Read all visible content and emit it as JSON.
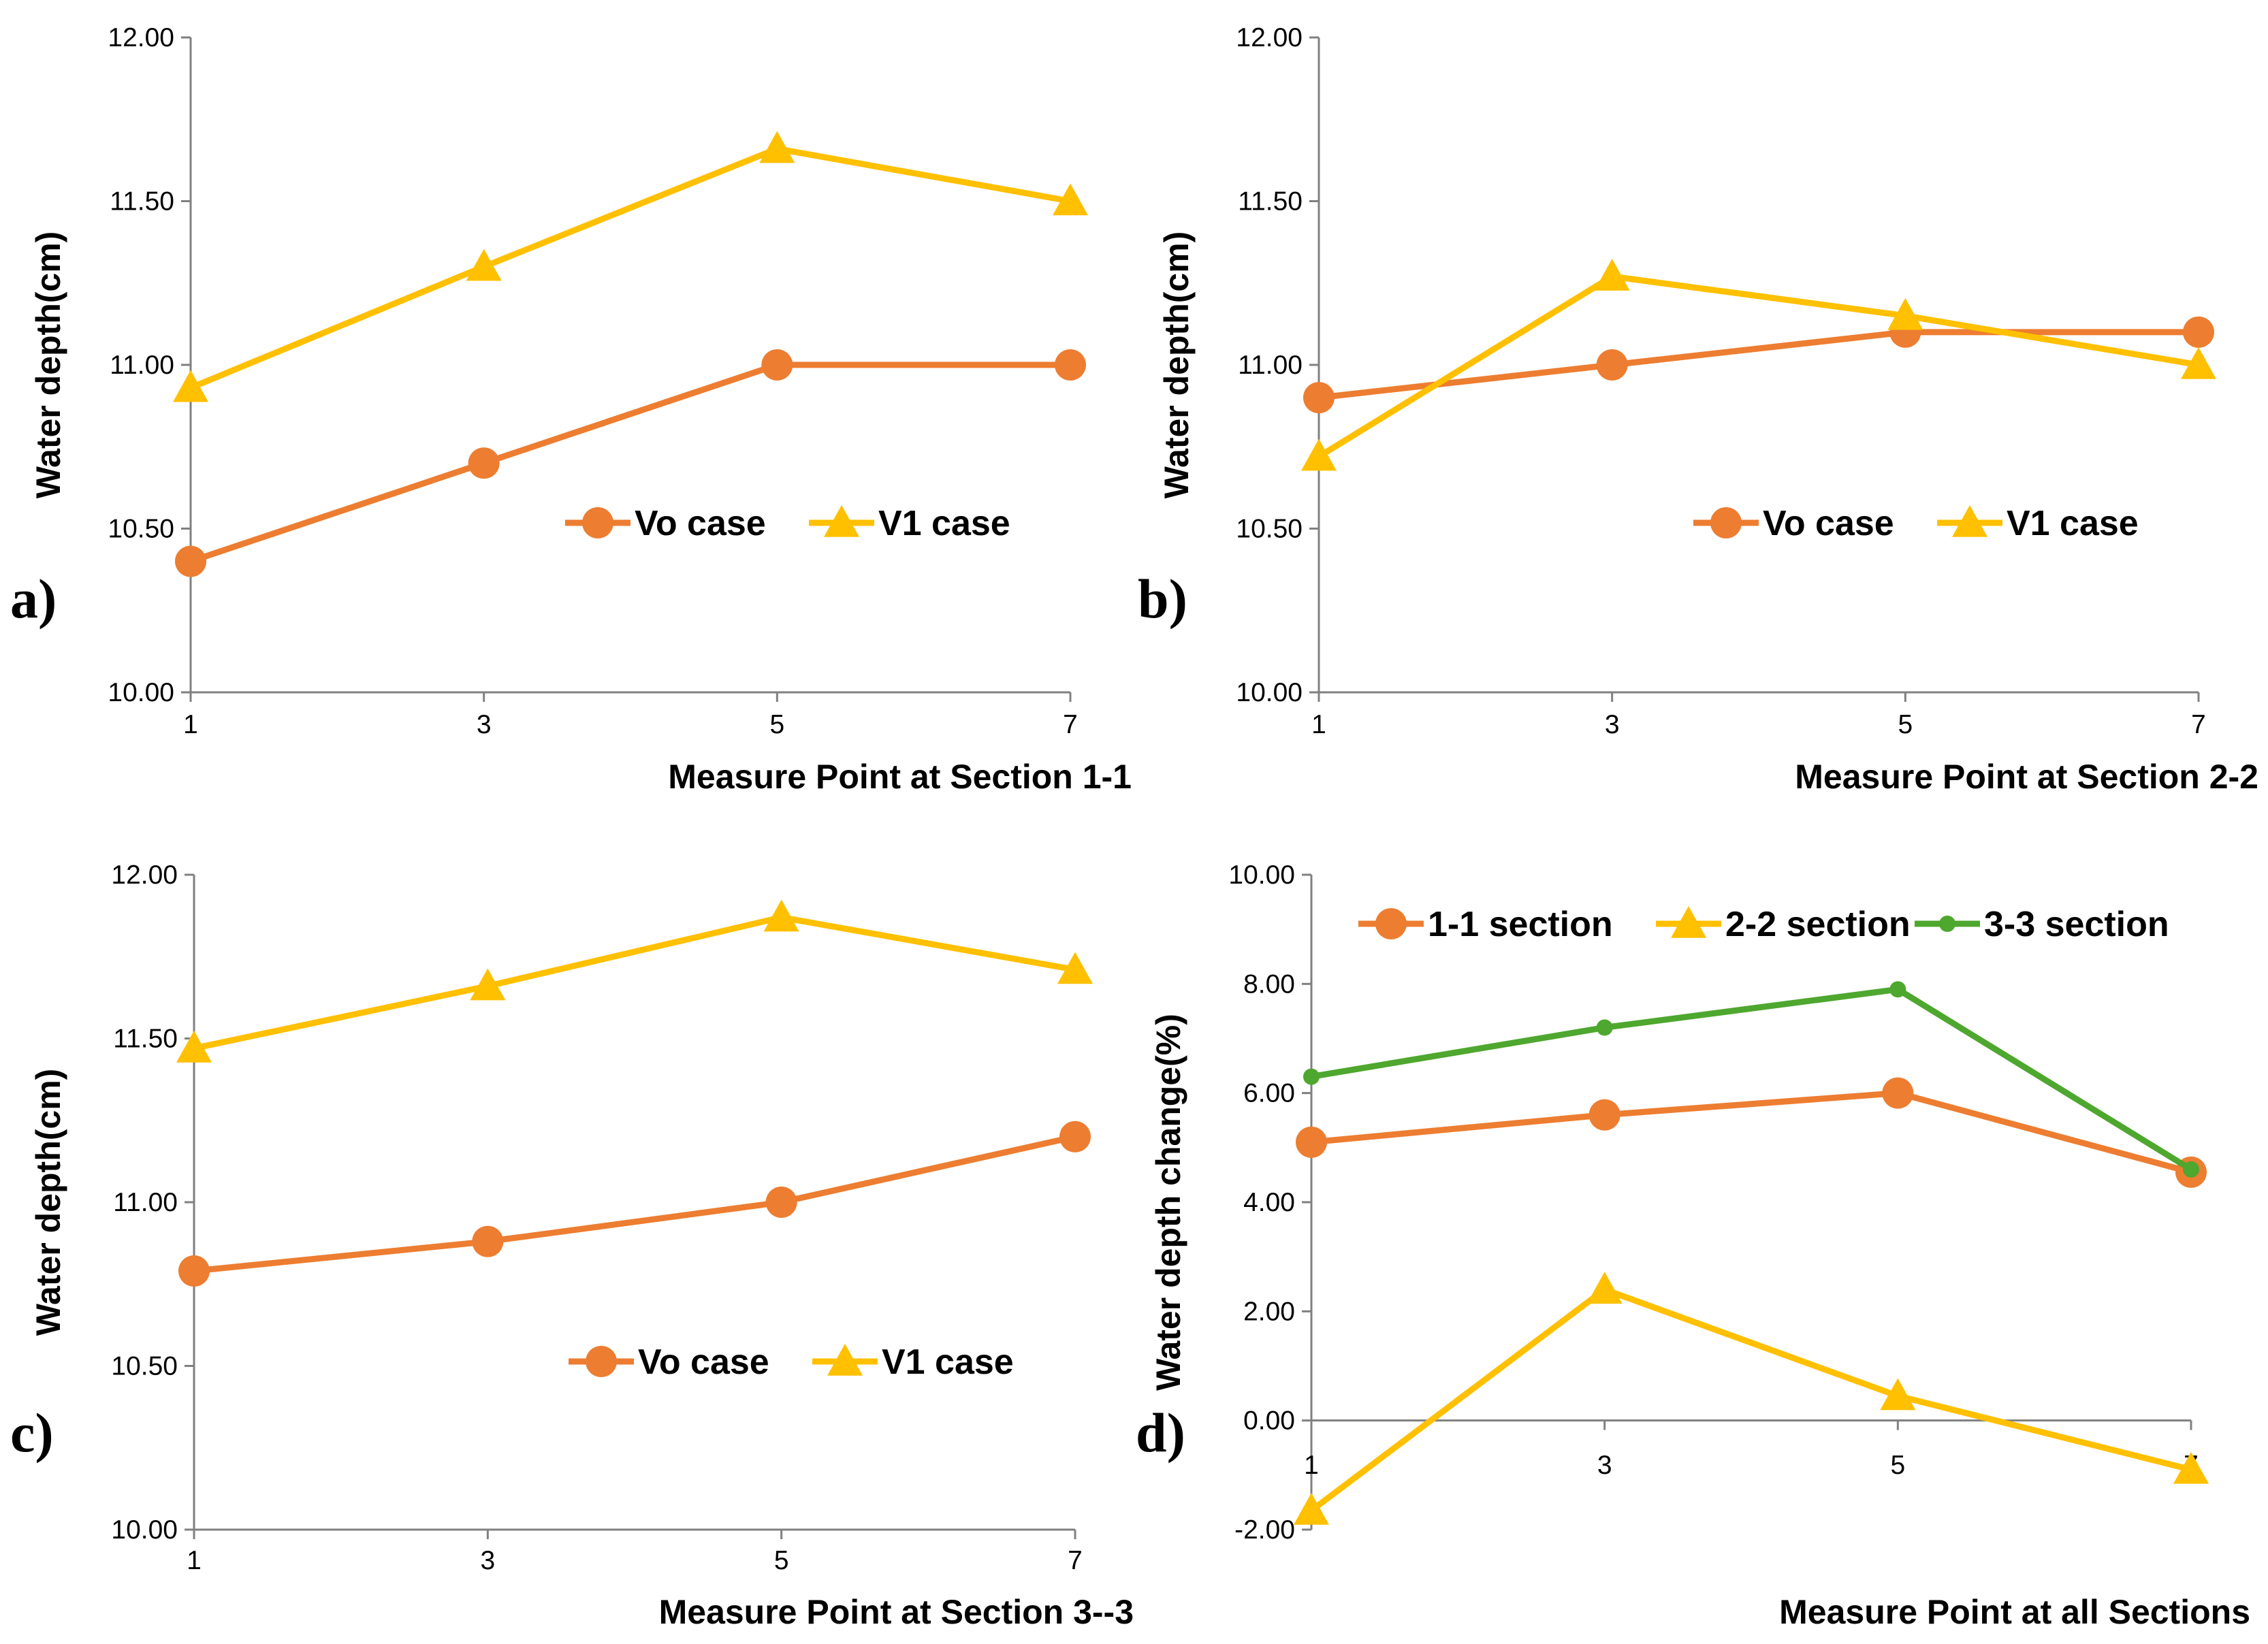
{
  "colors": {
    "orange": "#ED7D31",
    "yellow": "#FFC000",
    "green": "#4EA72E",
    "axis": "#808080"
  },
  "chart_data": [
    {
      "type": "line",
      "panel": "a)",
      "x": [
        1,
        3,
        5,
        7
      ],
      "xlabel": "Measure Point at Section 1-1",
      "ylabel": "Water depth(cm)",
      "ylim": [
        10.0,
        12.0
      ],
      "yticks": [
        "10.00",
        "10.50",
        "11.00",
        "11.50",
        "12.00"
      ],
      "xticks": [
        "1",
        "3",
        "5",
        "7"
      ],
      "legend_position": "center-right",
      "series": [
        {
          "name": "Vo case",
          "marker": "circle",
          "color": "#ED7D31",
          "values": [
            10.4,
            10.7,
            11.0,
            11.0
          ]
        },
        {
          "name": "V1 case",
          "marker": "triangle",
          "color": "#FFC000",
          "values": [
            10.93,
            11.3,
            11.66,
            11.5
          ]
        }
      ]
    },
    {
      "type": "line",
      "panel": "b)",
      "x": [
        1,
        3,
        5,
        7
      ],
      "xlabel": "Measure Point at Section 2-2",
      "ylabel": "Water depth(cm)",
      "ylim": [
        10.0,
        12.0
      ],
      "yticks": [
        "10.00",
        "10.50",
        "11.00",
        "11.50",
        "12.00"
      ],
      "xticks": [
        "1",
        "3",
        "5",
        "7"
      ],
      "legend_position": "center-right",
      "series": [
        {
          "name": "Vo case",
          "marker": "circle",
          "color": "#ED7D31",
          "values": [
            10.9,
            11.0,
            11.1,
            11.1
          ]
        },
        {
          "name": "V1 case",
          "marker": "triangle",
          "color": "#FFC000",
          "values": [
            10.72,
            11.27,
            11.15,
            11.0
          ]
        }
      ]
    },
    {
      "type": "line",
      "panel": "c)",
      "x": [
        1,
        3,
        5,
        7
      ],
      "xlabel": "Measure Point at Section 3--3",
      "ylabel": "Water depth(cm)",
      "ylim": [
        10.0,
        12.0
      ],
      "yticks": [
        "10.00",
        "10.50",
        "11.00",
        "11.50",
        "12.00"
      ],
      "xticks": [
        "1",
        "3",
        "5",
        "7"
      ],
      "legend_position": "center-right",
      "series": [
        {
          "name": "Vo case",
          "marker": "circle",
          "color": "#ED7D31",
          "values": [
            10.79,
            10.88,
            11.0,
            11.2
          ]
        },
        {
          "name": "V1 case",
          "marker": "triangle",
          "color": "#FFC000",
          "values": [
            11.47,
            11.66,
            11.87,
            11.71
          ]
        }
      ]
    },
    {
      "type": "line",
      "panel": "d)",
      "x": [
        1,
        3,
        5,
        7
      ],
      "xlabel": "Measure Point at all Sections",
      "ylabel": "Water depth change(%)",
      "ylim": [
        -2.0,
        10.0
      ],
      "yticks": [
        "-2.00",
        "0.00",
        "2.00",
        "4.00",
        "6.00",
        "8.00",
        "10.00"
      ],
      "xticks": [
        "1",
        "3",
        "5",
        "7"
      ],
      "legend_position": "top",
      "series": [
        {
          "name": "1-1 section",
          "marker": "circle",
          "color": "#ED7D31",
          "values": [
            5.1,
            5.6,
            6.0,
            4.55
          ]
        },
        {
          "name": "2-2 section",
          "marker": "triangle",
          "color": "#FFC000",
          "values": [
            -1.65,
            2.4,
            0.45,
            -0.9
          ]
        },
        {
          "name": "3-3 section",
          "marker": "dot",
          "color": "#4EA72E",
          "values": [
            6.3,
            7.2,
            7.9,
            4.6
          ]
        }
      ]
    }
  ]
}
